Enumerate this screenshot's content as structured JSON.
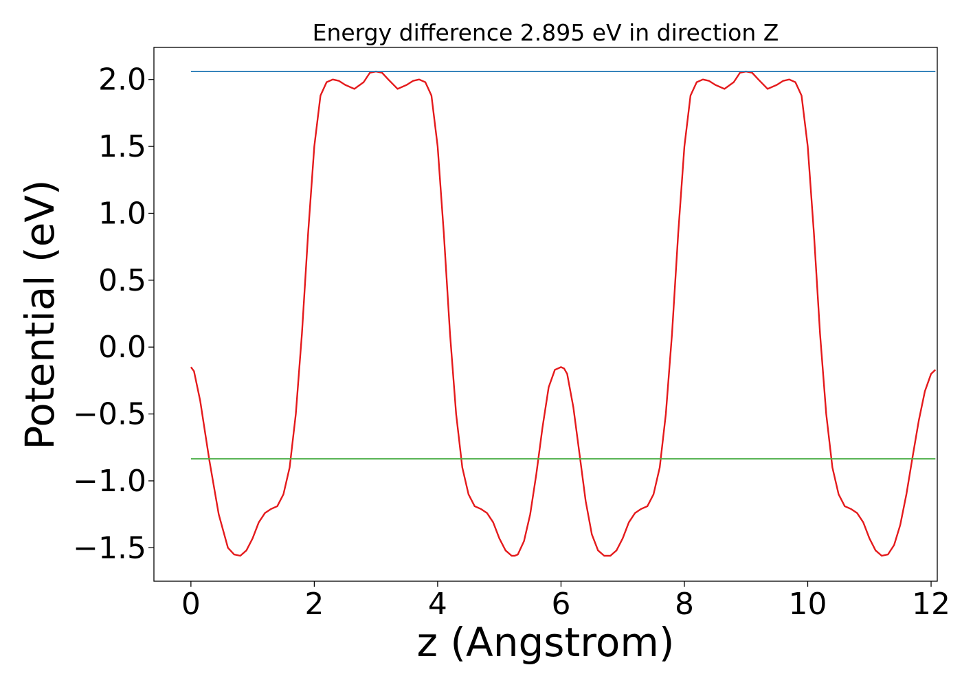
{
  "chart_data": {
    "type": "line",
    "title": "Energy difference 2.895 eV in direction Z",
    "xlabel": "z (Angstrom)",
    "ylabel": "Potential (eV)",
    "xlim": [
      -0.6,
      12.1
    ],
    "ylim": [
      -1.75,
      2.24
    ],
    "xticks": [
      0,
      2,
      4,
      6,
      8,
      10,
      12
    ],
    "xtick_labels": [
      "0",
      "2",
      "4",
      "6",
      "8",
      "10",
      "12"
    ],
    "yticks": [
      2.0,
      1.5,
      1.0,
      0.5,
      0.0,
      -0.5,
      -1.0,
      -1.5
    ],
    "ytick_labels": [
      "2.0",
      "1.5",
      "1.0",
      "0.5",
      "0.0",
      "−0.5",
      "−1.0",
      "−1.5"
    ],
    "grid": false,
    "series": [
      {
        "color": "#e41a1c",
        "x": [
          0.0,
          0.05,
          0.15,
          0.3,
          0.45,
          0.6,
          0.7,
          0.8,
          0.9,
          1.0,
          1.1,
          1.2,
          1.3,
          1.4,
          1.5,
          1.6,
          1.7,
          1.8,
          1.9,
          2.0,
          2.1,
          2.2,
          2.3,
          2.4,
          2.5,
          2.65,
          2.8,
          2.9,
          3.0,
          3.1,
          3.2,
          3.35,
          3.5,
          3.6,
          3.7,
          3.8,
          3.9,
          4.0,
          4.1,
          4.2,
          4.3,
          4.4,
          4.5,
          4.6,
          4.7,
          4.8,
          4.9,
          5.0,
          5.1,
          5.2,
          5.25,
          5.3,
          5.4,
          5.5,
          5.6,
          5.7,
          5.8,
          5.9,
          6.0,
          6.05,
          6.1,
          6.2,
          6.3,
          6.4,
          6.5,
          6.6,
          6.7,
          6.8,
          6.85,
          6.9,
          7.0,
          7.1,
          7.2,
          7.3,
          7.4,
          7.5,
          7.6,
          7.7,
          7.8,
          7.9,
          8.0,
          8.1,
          8.2,
          8.3,
          8.4,
          8.5,
          8.65,
          8.8,
          8.9,
          9.0,
          9.1,
          9.2,
          9.35,
          9.5,
          9.6,
          9.7,
          9.8,
          9.9,
          10.0,
          10.1,
          10.2,
          10.3,
          10.4,
          10.5,
          10.6,
          10.7,
          10.8,
          10.9,
          11.0,
          11.1,
          11.2,
          11.3,
          11.4,
          11.5,
          11.6,
          11.7,
          11.8,
          11.9,
          12.0,
          12.07
        ],
        "y": [
          -0.15,
          -0.18,
          -0.4,
          -0.85,
          -1.25,
          -1.5,
          -1.55,
          -1.56,
          -1.52,
          -1.43,
          -1.31,
          -1.24,
          -1.21,
          -1.19,
          -1.1,
          -0.9,
          -0.5,
          0.1,
          0.85,
          1.5,
          1.88,
          1.98,
          2.0,
          1.99,
          1.96,
          1.93,
          1.98,
          2.05,
          2.06,
          2.05,
          2.0,
          1.93,
          1.96,
          1.99,
          2.0,
          1.98,
          1.88,
          1.5,
          0.85,
          0.1,
          -0.5,
          -0.9,
          -1.1,
          -1.19,
          -1.21,
          -1.24,
          -1.31,
          -1.43,
          -1.52,
          -1.56,
          -1.56,
          -1.55,
          -1.45,
          -1.25,
          -0.95,
          -0.6,
          -0.3,
          -0.17,
          -0.15,
          -0.16,
          -0.2,
          -0.45,
          -0.8,
          -1.15,
          -1.4,
          -1.52,
          -1.56,
          -1.56,
          -1.54,
          -1.52,
          -1.43,
          -1.31,
          -1.24,
          -1.21,
          -1.19,
          -1.1,
          -0.9,
          -0.5,
          0.1,
          0.85,
          1.5,
          1.88,
          1.98,
          2.0,
          1.99,
          1.96,
          1.93,
          1.98,
          2.05,
          2.06,
          2.05,
          2.0,
          1.93,
          1.96,
          1.99,
          2.0,
          1.98,
          1.88,
          1.5,
          0.85,
          0.1,
          -0.5,
          -0.9,
          -1.1,
          -1.19,
          -1.21,
          -1.24,
          -1.31,
          -1.43,
          -1.52,
          -1.56,
          -1.55,
          -1.48,
          -1.33,
          -1.1,
          -0.82,
          -0.55,
          -0.33,
          -0.2,
          -0.17
        ]
      },
      {
        "color": "#1f77b4",
        "x": [
          0.0,
          12.07
        ],
        "y": [
          2.06,
          2.06
        ]
      },
      {
        "color": "#4daf4a",
        "x": [
          0.0,
          12.07
        ],
        "y": [
          -0.835,
          -0.835
        ]
      }
    ]
  }
}
